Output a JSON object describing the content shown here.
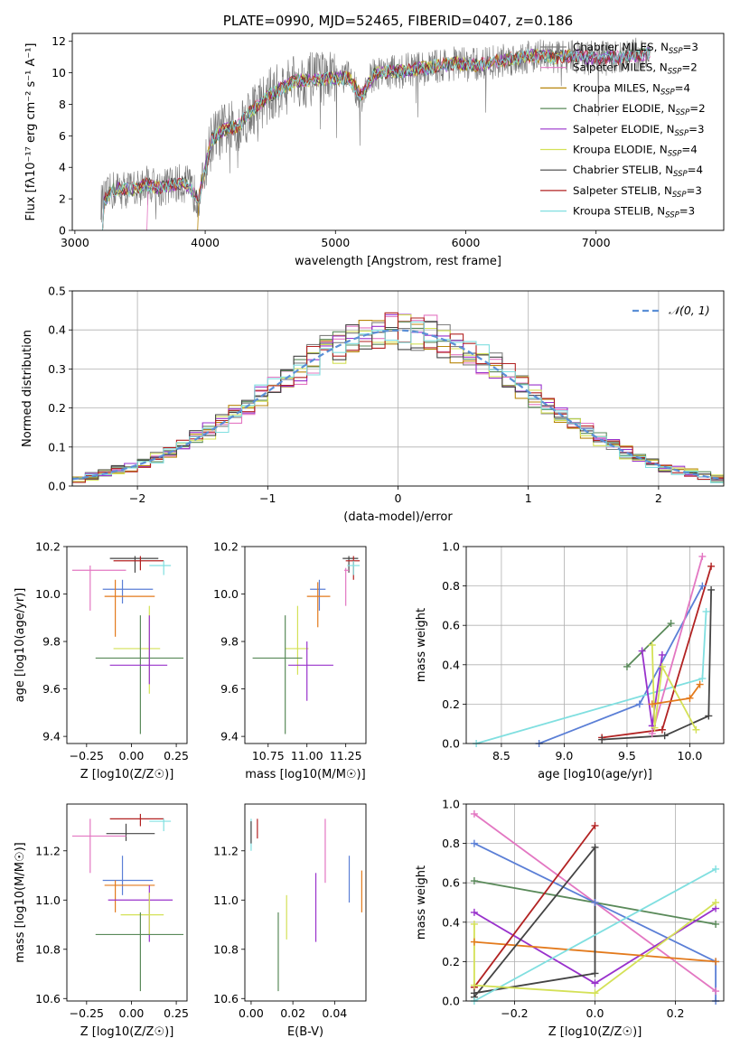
{
  "colors": {
    "C_MILES": "#808080",
    "S_MILES": "#e377c2",
    "K_MILES": "#b8860b",
    "C_ELODIE": "#5a8a5a",
    "S_ELODIE": "#9932cc",
    "K_ELODIE": "#d4e157",
    "C_STELIB": "#444444",
    "S_STELIB": "#b22222",
    "K_STELIB": "#80dfe0",
    "blue": "#5b7fd6",
    "orange": "#e37a1c",
    "normal": "#5b8fd6"
  },
  "chart_data": [
    {
      "id": "spectrum",
      "type": "line",
      "title": "PLATE=0990, MJD=52465, FIBERID=0407, z=0.186",
      "xlabel": "wavelength [Angstrom, rest frame]",
      "ylabel": "Flux [fλ10⁻¹⁷ erg cm⁻² s⁻¹ A⁻¹]",
      "xlim": [
        2980,
        7980
      ],
      "ylim": [
        0,
        12.5
      ],
      "xticks": [
        3000,
        4000,
        5000,
        6000,
        7000
      ],
      "yticks": [
        0,
        2,
        4,
        6,
        8,
        10,
        12
      ],
      "continuum": [
        [
          3200,
          1.7
        ],
        [
          3300,
          2.6
        ],
        [
          3450,
          2.6
        ],
        [
          3550,
          2.9
        ],
        [
          3650,
          2.7
        ],
        [
          3750,
          2.9
        ],
        [
          3850,
          3.0
        ],
        [
          3950,
          2.0
        ],
        [
          4050,
          5.8
        ],
        [
          4150,
          6.4
        ],
        [
          4250,
          6.6
        ],
        [
          4350,
          7.6
        ],
        [
          4500,
          8.6
        ],
        [
          4700,
          9.5
        ],
        [
          4900,
          9.6
        ],
        [
          5100,
          9.7
        ],
        [
          5200,
          8.5
        ],
        [
          5300,
          10.0
        ],
        [
          5500,
          10.1
        ],
        [
          5700,
          10.3
        ],
        [
          5900,
          10.6
        ],
        [
          6100,
          10.5
        ],
        [
          6300,
          10.8
        ],
        [
          6500,
          11.1
        ],
        [
          6700,
          11.0
        ],
        [
          6800,
          11.1
        ],
        [
          7000,
          10.9
        ],
        [
          7200,
          11.0
        ],
        [
          7400,
          11.2
        ]
      ],
      "legend": [
        {
          "label": "Chabrier MILES, N_SSP=3",
          "color": "C_MILES"
        },
        {
          "label": "Salpeter MILES, N_SSP=2",
          "color": "S_MILES"
        },
        {
          "label": "Kroupa MILES, N_SSP=4",
          "color": "K_MILES"
        },
        {
          "label": "Chabrier ELODIE, N_SSP=2",
          "color": "C_ELODIE"
        },
        {
          "label": "Salpeter ELODIE, N_SSP=3",
          "color": "S_ELODIE"
        },
        {
          "label": "Kroupa ELODIE, N_SSP=4",
          "color": "K_ELODIE"
        },
        {
          "label": "Chabrier STELIB, N_SSP=4",
          "color": "C_STELIB"
        },
        {
          "label": "Salpeter STELIB, N_SSP=3",
          "color": "S_STELIB"
        },
        {
          "label": "Kroupa STELIB, N_SSP=3",
          "color": "K_STELIB"
        }
      ],
      "legend_loc": "upper right"
    },
    {
      "id": "residuals",
      "type": "line",
      "xlabel": "(data-model)/error",
      "ylabel": "Normed distribution",
      "xlim": [
        -2.5,
        2.5
      ],
      "ylim": [
        0,
        0.5
      ],
      "xticks": [
        -2,
        -1,
        0,
        1,
        2
      ],
      "yticks": [
        0.0,
        0.1,
        0.2,
        0.3,
        0.4,
        0.5
      ],
      "legend": "N(0,1)",
      "legend_loc": "upper right",
      "grid": true
    },
    {
      "id": "age_Z",
      "type": "scatter",
      "xlabel": "Z [log10(Z/Z☉)]",
      "ylabel": "age [log10(age/yr)]",
      "xlim": [
        -0.36,
        0.31
      ],
      "ylim": [
        9.37,
        10.2
      ],
      "xticks": [
        -0.25,
        0.0,
        0.25
      ],
      "yticks": [
        9.4,
        9.6,
        9.8,
        10.0,
        10.2
      ],
      "points": [
        {
          "x": 0.02,
          "xlo": -0.12,
          "xhi": 0.15,
          "y": 10.15,
          "ylo": 10.09,
          "yhi": 10.16,
          "c": "C_STELIB"
        },
        {
          "x": 0.05,
          "xlo": -0.1,
          "xhi": 0.18,
          "y": 10.14,
          "ylo": 10.1,
          "yhi": 10.16,
          "c": "S_STELIB"
        },
        {
          "x": 0.18,
          "xlo": 0.1,
          "xhi": 0.22,
          "y": 10.12,
          "ylo": 10.08,
          "yhi": 10.14,
          "c": "K_STELIB"
        },
        {
          "x": -0.23,
          "xlo": -0.33,
          "xhi": -0.03,
          "y": 10.1,
          "ylo": 9.93,
          "yhi": 10.12,
          "c": "S_MILES"
        },
        {
          "x": -0.05,
          "xlo": -0.16,
          "xhi": 0.12,
          "y": 10.02,
          "ylo": 9.96,
          "yhi": 10.06,
          "c": "blue"
        },
        {
          "x": -0.09,
          "xlo": -0.15,
          "xhi": 0.13,
          "y": 9.99,
          "ylo": 9.82,
          "yhi": 10.06,
          "c": "orange"
        },
        {
          "x": 0.1,
          "xlo": -0.1,
          "xhi": 0.16,
          "y": 9.77,
          "ylo": 9.58,
          "yhi": 9.95,
          "c": "K_ELODIE"
        },
        {
          "x": 0.05,
          "xlo": -0.2,
          "xhi": 0.29,
          "y": 9.73,
          "ylo": 9.41,
          "yhi": 9.91,
          "c": "C_ELODIE"
        },
        {
          "x": 0.1,
          "xlo": -0.12,
          "xhi": 0.2,
          "y": 9.7,
          "ylo": 9.62,
          "yhi": 9.91,
          "c": "S_ELODIE"
        }
      ]
    },
    {
      "id": "age_mass",
      "type": "scatter",
      "xlabel": "mass [log10(M/M☉)]",
      "xlim": [
        10.6,
        11.38
      ],
      "ylim": [
        9.37,
        10.2
      ],
      "xticks": [
        10.75,
        11.0,
        11.25
      ],
      "yticks": [
        9.4,
        9.6,
        9.8,
        10.0,
        10.2
      ],
      "points": [
        {
          "x": 11.27,
          "xlo": 11.23,
          "xhi": 11.33,
          "y": 10.15,
          "ylo": 10.09,
          "yhi": 10.16,
          "c": "C_STELIB"
        },
        {
          "x": 11.3,
          "xlo": 11.25,
          "xhi": 11.34,
          "y": 10.14,
          "ylo": 10.06,
          "yhi": 10.16,
          "c": "S_STELIB"
        },
        {
          "x": 11.3,
          "xlo": 11.26,
          "xhi": 11.34,
          "y": 10.12,
          "ylo": 10.08,
          "yhi": 10.14,
          "c": "K_STELIB"
        },
        {
          "x": 11.25,
          "xlo": 11.24,
          "xhi": 11.27,
          "y": 10.1,
          "ylo": 9.95,
          "yhi": 10.11,
          "c": "S_MILES"
        },
        {
          "x": 11.08,
          "xlo": 11.02,
          "xhi": 11.12,
          "y": 10.02,
          "ylo": 9.93,
          "yhi": 10.06,
          "c": "blue"
        },
        {
          "x": 11.07,
          "xlo": 11.0,
          "xhi": 11.15,
          "y": 9.99,
          "ylo": 9.86,
          "yhi": 10.05,
          "c": "orange"
        },
        {
          "x": 10.94,
          "xlo": 10.86,
          "xhi": 11.01,
          "y": 9.77,
          "ylo": 9.66,
          "yhi": 9.95,
          "c": "K_ELODIE"
        },
        {
          "x": 10.86,
          "xlo": 10.65,
          "xhi": 10.97,
          "y": 9.73,
          "ylo": 9.41,
          "yhi": 9.91,
          "c": "C_ELODIE"
        },
        {
          "x": 11.0,
          "xlo": 10.88,
          "xhi": 11.17,
          "y": 9.7,
          "ylo": 9.55,
          "yhi": 9.8,
          "c": "S_ELODIE"
        }
      ]
    },
    {
      "id": "weight_age",
      "type": "line",
      "xlabel": "age [log10(age/yr)]",
      "ylabel": "mass weight",
      "xlim": [
        8.22,
        10.27
      ],
      "ylim": [
        0,
        1.0
      ],
      "xticks": [
        8.5,
        9.0,
        9.5,
        10.0
      ],
      "yticks": [
        0.0,
        0.2,
        0.4,
        0.6,
        0.8,
        1.0
      ],
      "grid": true,
      "series": [
        {
          "c": "blue",
          "pts": [
            [
              8.8,
              0.0
            ],
            [
              9.6,
              0.2
            ],
            [
              10.1,
              0.8
            ]
          ]
        },
        {
          "c": "K_STELIB",
          "pts": [
            [
              8.3,
              0.0
            ],
            [
              10.1,
              0.33
            ],
            [
              10.13,
              0.67
            ]
          ]
        },
        {
          "c": "S_MILES",
          "pts": [
            [
              9.7,
              0.05
            ],
            [
              10.1,
              0.95
            ]
          ]
        },
        {
          "c": "S_STELIB",
          "pts": [
            [
              9.3,
              0.03
            ],
            [
              9.78,
              0.07
            ],
            [
              10.17,
              0.9
            ]
          ]
        },
        {
          "c": "C_STELIB",
          "pts": [
            [
              9.3,
              0.02
            ],
            [
              9.8,
              0.04
            ],
            [
              10.15,
              0.14
            ],
            [
              10.17,
              0.78
            ]
          ]
        },
        {
          "c": "C_ELODIE",
          "pts": [
            [
              9.5,
              0.39
            ],
            [
              9.85,
              0.61
            ]
          ]
        },
        {
          "c": "S_ELODIE",
          "pts": [
            [
              9.62,
              0.47
            ],
            [
              9.7,
              0.09
            ],
            [
              9.78,
              0.45
            ]
          ]
        },
        {
          "c": "K_ELODIE",
          "pts": [
            [
              9.7,
              0.5
            ],
            [
              9.72,
              0.08
            ],
            [
              9.78,
              0.39
            ],
            [
              10.05,
              0.07
            ]
          ]
        },
        {
          "c": "orange",
          "pts": [
            [
              9.7,
              0.2
            ],
            [
              10.0,
              0.23
            ],
            [
              10.08,
              0.3
            ]
          ]
        }
      ]
    },
    {
      "id": "mass_Z",
      "type": "scatter",
      "xlabel": "Z [log10(Z/Z☉)]",
      "ylabel": "mass [log10(M/M☉)]",
      "xlim": [
        -0.36,
        0.31
      ],
      "ylim": [
        10.59,
        11.39
      ],
      "xticks": [
        -0.25,
        0.0,
        0.25
      ],
      "yticks": [
        10.6,
        10.8,
        11.0,
        11.2
      ],
      "points": [
        {
          "x": 0.05,
          "xlo": -0.12,
          "xhi": 0.18,
          "y": 11.33,
          "ylo": 11.3,
          "yhi": 11.35,
          "c": "S_STELIB"
        },
        {
          "x": 0.18,
          "xlo": 0.1,
          "xhi": 0.22,
          "y": 11.32,
          "ylo": 11.28,
          "yhi": 11.33,
          "c": "K_STELIB"
        },
        {
          "x": -0.03,
          "xlo": -0.14,
          "xhi": 0.13,
          "y": 11.27,
          "ylo": 11.24,
          "yhi": 11.31,
          "c": "C_STELIB"
        },
        {
          "x": -0.23,
          "xlo": -0.33,
          "xhi": -0.03,
          "y": 11.26,
          "ylo": 11.11,
          "yhi": 11.33,
          "c": "S_MILES"
        },
        {
          "x": -0.05,
          "xlo": -0.16,
          "xhi": 0.12,
          "y": 11.08,
          "ylo": 11.02,
          "yhi": 11.18,
          "c": "blue"
        },
        {
          "x": -0.09,
          "xlo": -0.15,
          "xhi": 0.13,
          "y": 11.06,
          "ylo": 10.95,
          "yhi": 11.08,
          "c": "orange"
        },
        {
          "x": 0.1,
          "xlo": -0.13,
          "xhi": 0.23,
          "y": 11.0,
          "ylo": 10.83,
          "yhi": 11.06,
          "c": "S_ELODIE"
        },
        {
          "x": 0.1,
          "xlo": -0.06,
          "xhi": 0.18,
          "y": 10.94,
          "ylo": 10.86,
          "yhi": 11.03,
          "c": "K_ELODIE"
        },
        {
          "x": 0.05,
          "xlo": -0.2,
          "xhi": 0.29,
          "y": 10.86,
          "ylo": 10.63,
          "yhi": 10.95,
          "c": "C_ELODIE"
        }
      ]
    },
    {
      "id": "mass_ebv",
      "type": "scatter",
      "xlabel": "E(B-V)",
      "xlim": [
        -0.003,
        0.055
      ],
      "ylim": [
        10.59,
        11.39
      ],
      "xticks": [
        0.0,
        0.02,
        0.04
      ],
      "yticks": [
        10.6,
        10.8,
        11.0,
        11.2
      ],
      "points": [
        {
          "x": 0.0,
          "y": 11.27,
          "ylo": 11.2,
          "yhi": 11.33,
          "c": "K_STELIB"
        },
        {
          "x": 0.0,
          "y": 11.29,
          "ylo": 11.23,
          "yhi": 11.32,
          "c": "C_STELIB"
        },
        {
          "x": 0.003,
          "y": 11.3,
          "ylo": 11.25,
          "yhi": 11.33,
          "c": "S_STELIB"
        },
        {
          "x": 0.0355,
          "y": 11.2,
          "ylo": 11.07,
          "yhi": 11.33,
          "c": "S_MILES"
        },
        {
          "x": 0.047,
          "y": 11.06,
          "ylo": 10.99,
          "yhi": 11.18,
          "c": "blue"
        },
        {
          "x": 0.053,
          "y": 11.05,
          "ylo": 10.95,
          "yhi": 11.12,
          "c": "orange"
        },
        {
          "x": 0.031,
          "y": 10.97,
          "ylo": 10.83,
          "yhi": 11.11,
          "c": "S_ELODIE"
        },
        {
          "x": 0.017,
          "y": 10.93,
          "ylo": 10.84,
          "yhi": 11.02,
          "c": "K_ELODIE"
        },
        {
          "x": 0.013,
          "y": 10.78,
          "ylo": 10.63,
          "yhi": 10.95,
          "c": "C_ELODIE"
        }
      ]
    },
    {
      "id": "weight_Z",
      "type": "line",
      "xlabel": "Z [log10(Z/Z☉)]",
      "ylabel": "mass weight",
      "xlim": [
        -0.32,
        0.32
      ],
      "ylim": [
        0,
        1.0
      ],
      "xticks": [
        -0.2,
        0.0,
        0.2
      ],
      "yticks": [
        0.0,
        0.2,
        0.4,
        0.6,
        0.8,
        1.0
      ],
      "grid": true,
      "series": [
        {
          "c": "S_MILES",
          "pts": [
            [
              -0.3,
              0.95
            ],
            [
              0.0,
              0.5
            ],
            [
              0.3,
              0.05
            ]
          ]
        },
        {
          "c": "blue",
          "pts": [
            [
              -0.3,
              0.8
            ],
            [
              0.0,
              0.5
            ],
            [
              0.3,
              0.2
            ],
            [
              0.3,
              0.0
            ]
          ]
        },
        {
          "c": "C_ELODIE",
          "pts": [
            [
              -0.3,
              0.61
            ],
            [
              0.3,
              0.39
            ]
          ]
        },
        {
          "c": "S_ELODIE",
          "pts": [
            [
              -0.3,
              0.45
            ],
            [
              0.0,
              0.09
            ],
            [
              0.3,
              0.47
            ]
          ]
        },
        {
          "c": "orange",
          "pts": [
            [
              -0.3,
              0.3
            ],
            [
              0.3,
              0.2
            ]
          ]
        },
        {
          "c": "S_STELIB",
          "pts": [
            [
              -0.3,
              0.07
            ],
            [
              0.0,
              0.89
            ]
          ]
        },
        {
          "c": "C_STELIB",
          "pts": [
            [
              -0.3,
              0.02
            ],
            [
              0.0,
              0.78
            ],
            [
              0.0,
              0.14
            ],
            [
              -0.3,
              0.04
            ]
          ]
        },
        {
          "c": "K_STELIB",
          "pts": [
            [
              -0.3,
              0.0
            ],
            [
              0.3,
              0.67
            ]
          ]
        },
        {
          "c": "K_ELODIE",
          "pts": [
            [
              -0.3,
              0.39
            ],
            [
              -0.3,
              0.08
            ],
            [
              0.0,
              0.04
            ],
            [
              0.3,
              0.5
            ]
          ]
        }
      ]
    }
  ]
}
